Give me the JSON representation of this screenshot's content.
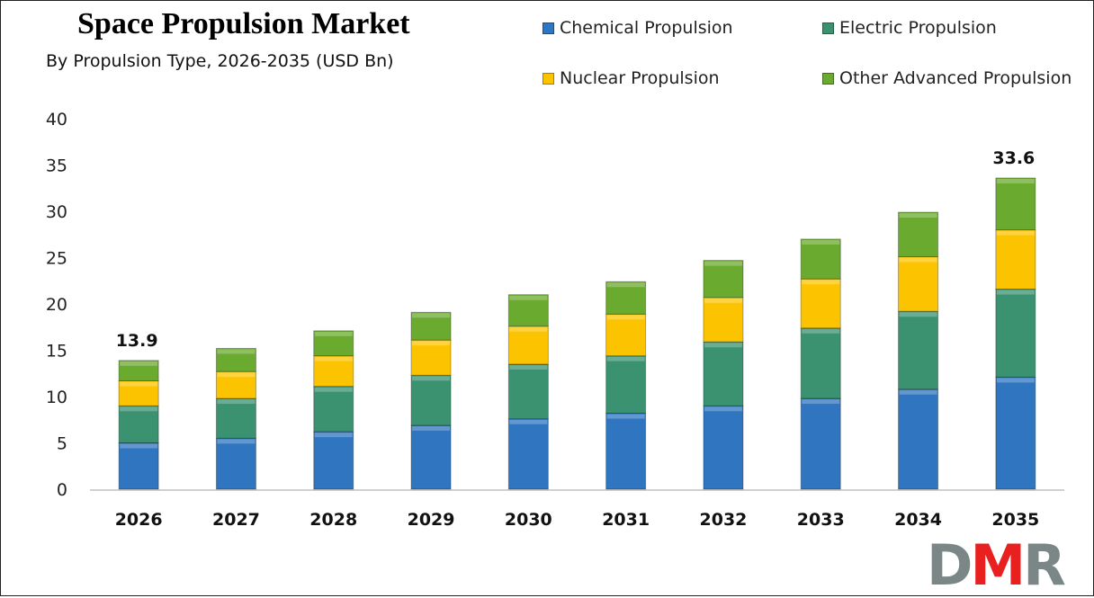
{
  "chart_data": {
    "type": "bar",
    "stacked": true,
    "title": "Space Propulsion Market",
    "subtitle": "By Propulsion Type, 2026-2035 (USD Bn)",
    "xlabel": "",
    "ylabel": "",
    "categories": [
      "2026",
      "2027",
      "2028",
      "2029",
      "2030",
      "2031",
      "2032",
      "2033",
      "2034",
      "2035"
    ],
    "ylim": [
      0,
      40
    ],
    "yticks": [
      0,
      5,
      10,
      15,
      20,
      25,
      30,
      35,
      40
    ],
    "grid": false,
    "legend_position": "top-right",
    "series": [
      {
        "name": "Chemical Propulsion",
        "color": "#2f75c0",
        "values": [
          5.0,
          5.5,
          6.2,
          6.9,
          7.6,
          8.2,
          9.0,
          9.8,
          10.8,
          12.1
        ]
      },
      {
        "name": "Electric Propulsion",
        "color": "#3a9270",
        "values": [
          4.0,
          4.3,
          4.9,
          5.4,
          5.9,
          6.2,
          6.9,
          7.6,
          8.4,
          9.5
        ]
      },
      {
        "name": "Nuclear Propulsion",
        "color": "#fcc400",
        "values": [
          2.7,
          2.9,
          3.3,
          3.8,
          4.1,
          4.5,
          4.8,
          5.3,
          5.9,
          6.4
        ]
      },
      {
        "name": "Other Advanced Propulsion",
        "color": "#6aaa2e",
        "values": [
          2.2,
          2.5,
          2.7,
          3.0,
          3.4,
          3.5,
          4.0,
          4.3,
          4.8,
          5.6
        ]
      }
    ],
    "data_labels": [
      {
        "category": "2026",
        "text": "13.9"
      },
      {
        "category": "2035",
        "text": "33.6"
      }
    ]
  },
  "logo": {
    "text_d": "D",
    "text_m": "M",
    "text_r": "R",
    "colors": {
      "gray": "#7a8786",
      "red": "#e8201f"
    }
  }
}
